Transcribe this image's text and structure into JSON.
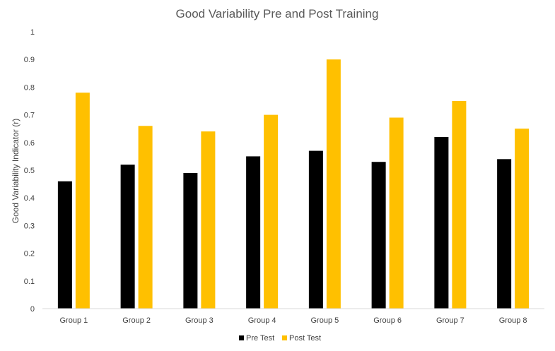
{
  "chart_data": {
    "type": "bar",
    "title": "Good Variability Pre and Post Training",
    "xlabel": "",
    "ylabel": "Good Variability Indicator (r)",
    "ylim": [
      0,
      1
    ],
    "yticks": [
      "0",
      "0.1",
      "0.2",
      "0.3",
      "0.4",
      "0.5",
      "0.6",
      "0.7",
      "0.8",
      "0.9",
      "1"
    ],
    "grid": false,
    "legend_position": "bottom",
    "categories": [
      "Group 1",
      "Group 2",
      "Group 3",
      "Group 4",
      "Group 5",
      "Group 6",
      "Group 7",
      "Group 8"
    ],
    "series": [
      {
        "name": "Pre Test",
        "color": "#000000",
        "values": [
          0.46,
          0.52,
          0.49,
          0.55,
          0.57,
          0.53,
          0.62,
          0.54
        ]
      },
      {
        "name": "Post Test",
        "color": "#FFC000",
        "values": [
          0.78,
          0.66,
          0.64,
          0.7,
          0.9,
          0.69,
          0.75,
          0.65
        ]
      }
    ]
  }
}
